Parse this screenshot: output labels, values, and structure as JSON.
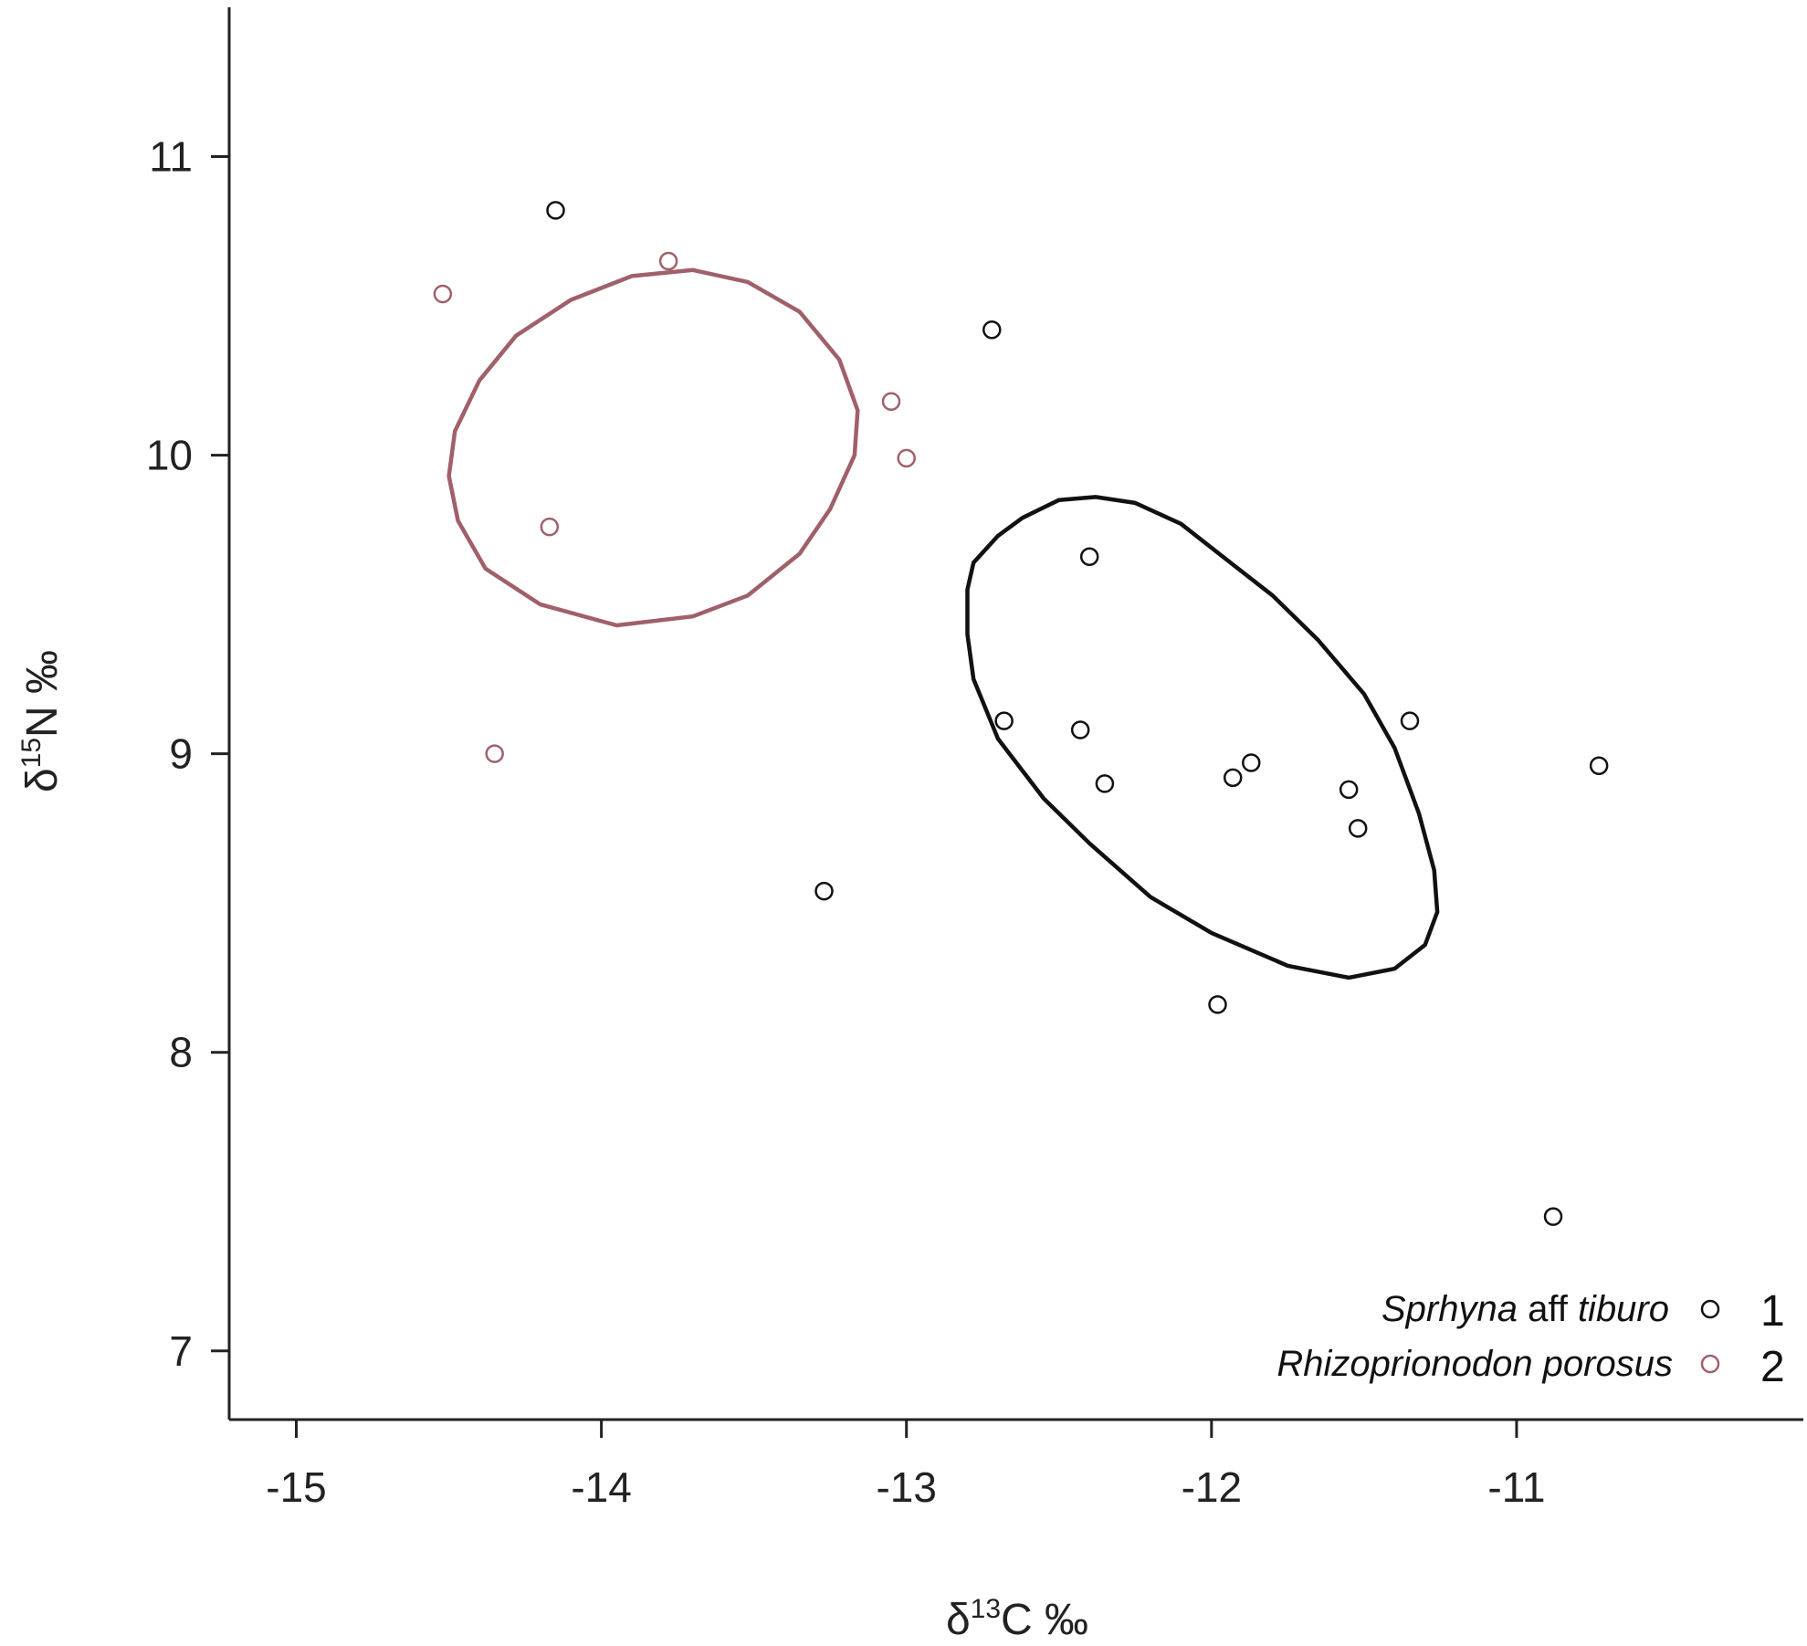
{
  "chart_data": {
    "type": "scatter",
    "x_axis": {
      "label_prefix": "δ",
      "label_sup": "13",
      "label_suffix": "C ‰",
      "range": [
        -15.22,
        -10.06
      ],
      "ticks": [
        -15,
        -14,
        -13,
        -12,
        -11
      ]
    },
    "y_axis": {
      "label_prefix": "δ",
      "label_sup": "15",
      "label_suffix": "N ‰",
      "range": [
        6.77,
        11.5
      ],
      "ticks": [
        7,
        8,
        9,
        10,
        11
      ]
    },
    "grid": false,
    "legend_position": "bottom-right",
    "series": [
      {
        "legend_italic_1": "Sprhyna",
        "legend_plain": " aff ",
        "legend_italic_2": "tiburo",
        "legend_number": "1",
        "color": "#111111",
        "points": [
          {
            "x": -14.15,
            "y": 10.82
          },
          {
            "x": -12.72,
            "y": 10.42
          },
          {
            "x": -12.4,
            "y": 9.66
          },
          {
            "x": -12.68,
            "y": 9.11
          },
          {
            "x": -12.43,
            "y": 9.08
          },
          {
            "x": -12.35,
            "y": 8.9
          },
          {
            "x": -11.93,
            "y": 8.92
          },
          {
            "x": -11.87,
            "y": 8.97
          },
          {
            "x": -11.55,
            "y": 8.88
          },
          {
            "x": -11.52,
            "y": 8.75
          },
          {
            "x": -11.35,
            "y": 9.11
          },
          {
            "x": -10.73,
            "y": 8.96
          },
          {
            "x": -13.27,
            "y": 8.54
          },
          {
            "x": -11.98,
            "y": 8.16
          },
          {
            "x": -10.88,
            "y": 7.45
          }
        ],
        "ellipse": [
          [
            -12.8,
            9.55
          ],
          [
            -12.78,
            9.64
          ],
          [
            -12.7,
            9.73
          ],
          [
            -12.62,
            9.79
          ],
          [
            -12.5,
            9.85
          ],
          [
            -12.38,
            9.86
          ],
          [
            -12.25,
            9.84
          ],
          [
            -12.1,
            9.77
          ],
          [
            -11.95,
            9.65
          ],
          [
            -11.8,
            9.53
          ],
          [
            -11.65,
            9.38
          ],
          [
            -11.5,
            9.2
          ],
          [
            -11.4,
            9.02
          ],
          [
            -11.32,
            8.8
          ],
          [
            -11.27,
            8.61
          ],
          [
            -11.26,
            8.47
          ],
          [
            -11.3,
            8.36
          ],
          [
            -11.4,
            8.28
          ],
          [
            -11.55,
            8.25
          ],
          [
            -11.75,
            8.29
          ],
          [
            -12.0,
            8.4
          ],
          [
            -12.2,
            8.52
          ],
          [
            -12.4,
            8.7
          ],
          [
            -12.55,
            8.85
          ],
          [
            -12.7,
            9.05
          ],
          [
            -12.78,
            9.25
          ],
          [
            -12.8,
            9.4
          ]
        ]
      },
      {
        "legend_italic_1": "Rhizoprionodon porosus",
        "legend_plain": "",
        "legend_italic_2": "",
        "legend_number": "2",
        "color": "#a0606a",
        "points": [
          {
            "x": -13.78,
            "y": 10.65
          },
          {
            "x": -14.52,
            "y": 10.54
          },
          {
            "x": -13.05,
            "y": 10.18
          },
          {
            "x": -13.0,
            "y": 9.99
          },
          {
            "x": -14.17,
            "y": 9.76
          },
          {
            "x": -14.35,
            "y": 9.0
          }
        ],
        "ellipse": [
          [
            -14.5,
            9.93
          ],
          [
            -14.48,
            10.08
          ],
          [
            -14.4,
            10.25
          ],
          [
            -14.28,
            10.4
          ],
          [
            -14.1,
            10.52
          ],
          [
            -13.9,
            10.6
          ],
          [
            -13.7,
            10.62
          ],
          [
            -13.52,
            10.58
          ],
          [
            -13.35,
            10.48
          ],
          [
            -13.22,
            10.32
          ],
          [
            -13.16,
            10.15
          ],
          [
            -13.17,
            10.0
          ],
          [
            -13.25,
            9.82
          ],
          [
            -13.35,
            9.67
          ],
          [
            -13.52,
            9.53
          ],
          [
            -13.7,
            9.46
          ],
          [
            -13.95,
            9.43
          ],
          [
            -14.2,
            9.5
          ],
          [
            -14.38,
            9.62
          ],
          [
            -14.47,
            9.78
          ]
        ]
      }
    ]
  }
}
